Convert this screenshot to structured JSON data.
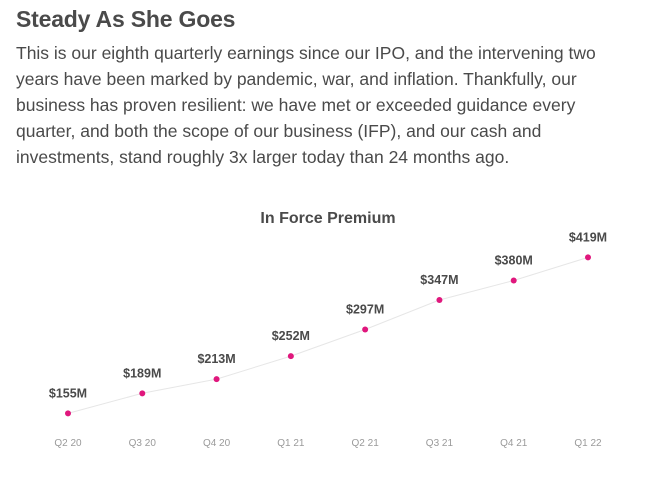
{
  "section": {
    "title": "Steady As She Goes",
    "paragraph": "This is our eighth quarterly earnings since our IPO, and the intervening two years have been marked by pandemic, war, and inflation. Thankfully, our business has proven resilient: we have met or exceeded guidance every quarter, and both the scope of our business (IFP), and our cash and investments, stand roughly 3x larger today than 24 months ago."
  },
  "chart_data": {
    "type": "line",
    "title": "In Force Premium",
    "xlabel": "",
    "ylabel": "",
    "categories": [
      "Q2 20",
      "Q3 20",
      "Q4 20",
      "Q1 21",
      "Q2 21",
      "Q3 21",
      "Q4 21",
      "Q1 22"
    ],
    "values": [
      155,
      189,
      213,
      252,
      297,
      347,
      380,
      419
    ],
    "data_labels": [
      "$155M",
      "$189M",
      "$213M",
      "$252M",
      "$297M",
      "$347M",
      "$380M",
      "$419M"
    ],
    "ylim": [
      110,
      440
    ],
    "grid": false,
    "legend": "none",
    "colors": {
      "marker": "#e0177d",
      "line": "#e6e6e6"
    }
  }
}
